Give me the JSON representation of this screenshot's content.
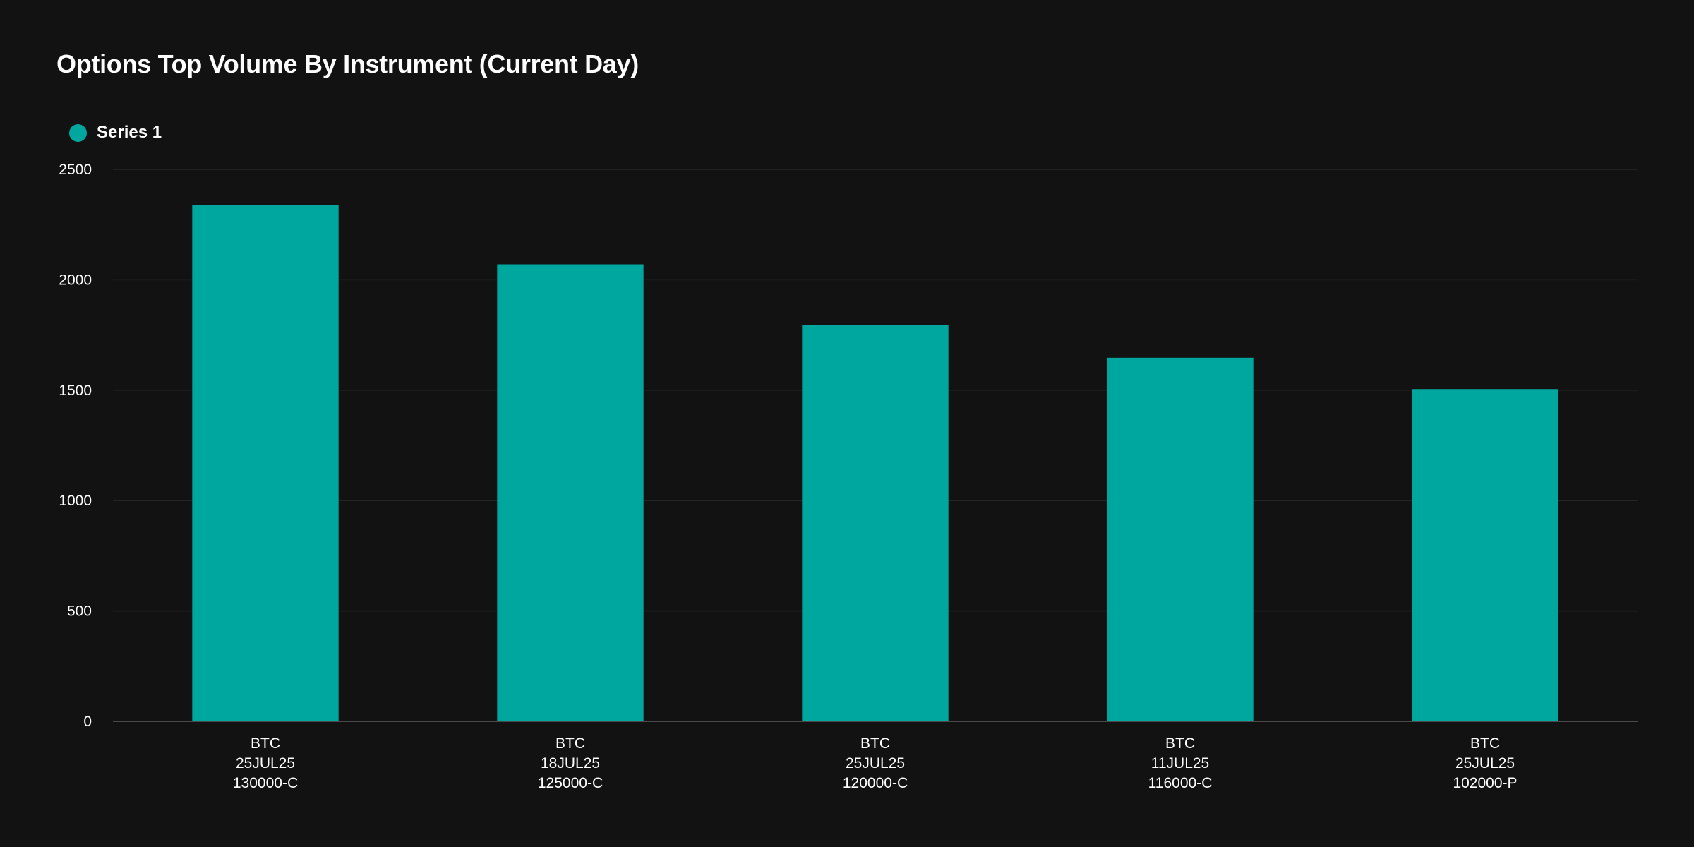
{
  "chart_data": {
    "type": "bar",
    "title": "Options Top Volume By Instrument (Current Day)",
    "xlabel": "",
    "ylabel": "",
    "categories": [
      [
        "BTC",
        "25JUL25",
        "130000-C"
      ],
      [
        "BTC",
        "18JUL25",
        "125000-C"
      ],
      [
        "BTC",
        "25JUL25",
        "120000-C"
      ],
      [
        "BTC",
        "11JUL25",
        "116000-C"
      ],
      [
        "BTC",
        "25JUL25",
        "102000-P"
      ]
    ],
    "series": [
      {
        "name": "Series 1",
        "values": [
          2340,
          2070,
          1795,
          1647,
          1505
        ]
      }
    ],
    "ylim": [
      0,
      2500
    ],
    "yticks": [
      0,
      500,
      1000,
      1500,
      2000,
      2500
    ],
    "grid": true,
    "legend_position": "top-left",
    "colors": {
      "series": "#00A79E",
      "background": "#121213",
      "grid": "#242426",
      "axis": "#4A4A4D"
    }
  }
}
